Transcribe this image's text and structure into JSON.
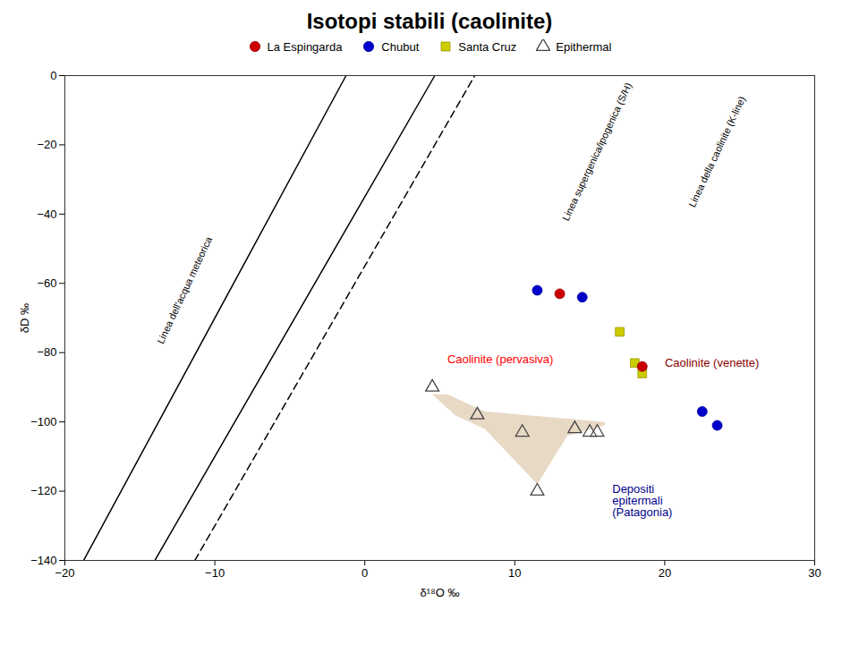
{
  "chart_data": {
    "type": "scatter",
    "title": "Isotopi stabili (caolinite)",
    "x_label": "δ¹⁸O ‰",
    "y_label": "δD ‰",
    "xlim": [
      -20,
      30
    ],
    "ylim": [
      -140,
      0
    ],
    "xticks": [
      -20,
      -10,
      0,
      10,
      20,
      30
    ],
    "yticks": [
      0,
      -20,
      -40,
      -60,
      -80,
      -100,
      -120,
      -140
    ],
    "grid": false,
    "legend": "top",
    "series": [
      {
        "name": "La Espingarda",
        "color": "#cc0000",
        "marker": "circle",
        "x": [
          13.0,
          18.5
        ],
        "values": [
          -63,
          -84
        ]
      },
      {
        "name": "Chubut",
        "color": "#0000cc",
        "marker": "circle",
        "x": [
          11.5,
          14.5,
          22.5,
          23.5
        ],
        "values": [
          -62,
          -64,
          -97,
          -101
        ]
      },
      {
        "name": "Santa Cruz",
        "color": "#cccc00",
        "marker": "square",
        "x": [
          17.0,
          18.0,
          18.5
        ],
        "values": [
          -74,
          -83,
          -86
        ]
      },
      {
        "name": "Epithermal",
        "color": "#444444",
        "marker": "triangle-open",
        "x": [
          4.5,
          7.5,
          10.5,
          11.5,
          14.0,
          15.0,
          15.5
        ],
        "values": [
          -90,
          -98,
          -103,
          -120,
          -102,
          -103,
          -103
        ]
      }
    ],
    "lines": [
      {
        "x": [
          -18.75,
          -1.25
        ],
        "values": [
          -140,
          0
        ],
        "color": "black",
        "line_style": "solid",
        "label": {
          "text": "Linea dell'acqua meteorica",
          "x": -12,
          "y": -62
        }
      },
      {
        "x": [
          -11.333333333333334,
          7.333333333333333
        ],
        "values": [
          -140,
          0
        ],
        "color": "black",
        "line_style": "dashed",
        "label": {
          "text": "Linea supergenica/ipogenica (S/H)",
          "x": 15.5,
          "y": -22
        }
      },
      {
        "x": [
          -14,
          4.666666666666667
        ],
        "values": [
          -140,
          0
        ],
        "color": "black",
        "line_style": "solid",
        "label": {
          "text": "Linea della caolinite (K-line)",
          "x": 23.5,
          "y": -22
        }
      }
    ],
    "area": {
      "x": [
        4.5,
        6.0,
        8.0,
        11.5,
        13.5,
        16.0,
        16.0,
        8.0,
        5.5
      ],
      "values": [
        -92,
        -98,
        -102,
        -118,
        -104,
        -101,
        -100,
        -97,
        -92
      ],
      "color": "#d2b48c"
    },
    "annotations": [
      {
        "text": "Caolinite (pervasiva)",
        "x": 5.5,
        "y": -82,
        "color": "red"
      },
      {
        "text": "Caolinite (venette)",
        "x": 20.0,
        "y": -83,
        "color": "#8B0000"
      },
      {
        "text": "Depositi\nepitermali\n(Patagonia)",
        "x": 16.5,
        "y": -118,
        "color": "#00008B"
      }
    ]
  }
}
